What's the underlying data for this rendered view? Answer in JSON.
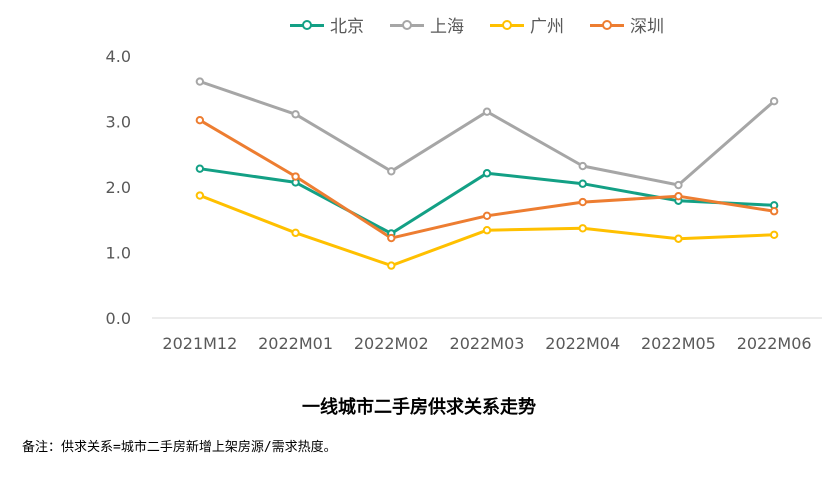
{
  "chart_data": {
    "type": "line",
    "title": "一线城市二手房供求关系走势",
    "categories": [
      "2021M12",
      "2022M01",
      "2022M02",
      "2022M03",
      "2022M04",
      "2022M05",
      "2022M06"
    ],
    "ylim": [
      0,
      4
    ],
    "yticks": [
      "0.0",
      "1.0",
      "2.0",
      "3.0",
      "4.0"
    ],
    "grid": false,
    "legend_position": "top",
    "series": [
      {
        "name": "北京",
        "color": "#13A085",
        "values": [
          2.28,
          2.07,
          1.29,
          2.21,
          2.05,
          1.79,
          1.72
        ]
      },
      {
        "name": "上海",
        "color": "#A6A6A6",
        "values": [
          3.61,
          3.11,
          2.24,
          3.15,
          2.32,
          2.03,
          3.31
        ]
      },
      {
        "name": "广州",
        "color": "#FFC000",
        "values": [
          1.87,
          1.3,
          0.8,
          1.34,
          1.37,
          1.21,
          1.27
        ]
      },
      {
        "name": "深圳",
        "color": "#ED7D31",
        "values": [
          3.02,
          2.16,
          1.22,
          1.56,
          1.77,
          1.86,
          1.63
        ]
      }
    ]
  },
  "footnote": "备注：供求关系=城市二手房新增上架房源/需求热度。"
}
